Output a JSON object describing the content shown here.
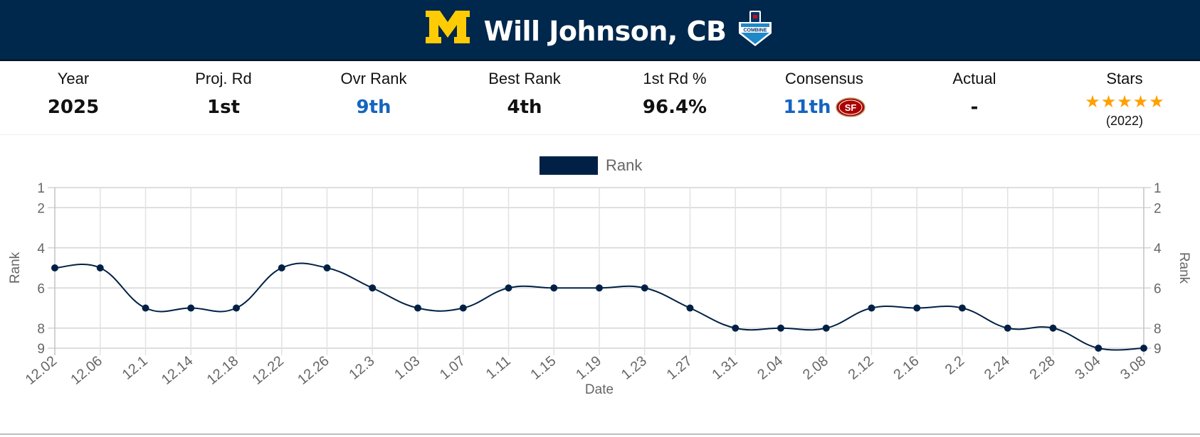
{
  "header": {
    "school_logo": "michigan-block-m-logo",
    "player_name": "Will Johnson, CB",
    "badge": "nfl-scouting-combine-badge",
    "badge_text": "COMBINE",
    "colors": {
      "header_bg": "#00274c",
      "maize": "#ffcb05"
    }
  },
  "stats": [
    {
      "label": "Year",
      "value": "2025"
    },
    {
      "label": "Proj. Rd",
      "value": "1st"
    },
    {
      "label": "Ovr Rank",
      "value": "9th",
      "highlight": true
    },
    {
      "label": "Best Rank",
      "value": "4th"
    },
    {
      "label": "1st Rd %",
      "value": "96.4%"
    },
    {
      "label": "Consensus",
      "value": "11th",
      "highlight": true,
      "team_logo": "san-francisco-49ers-logo"
    },
    {
      "label": "Actual",
      "value": "-"
    },
    {
      "label": "Stars",
      "stars": 5,
      "stars_year": "(2022)"
    }
  ],
  "colors": {
    "highlight": "#1565c0",
    "star": "#ffa000",
    "series": "#002145"
  },
  "chart_data": {
    "type": "line",
    "title": "",
    "legend": {
      "entries": [
        "Rank"
      ],
      "position": "top-center"
    },
    "xlabel": "Date",
    "ylabel": "Rank",
    "y2label": "Rank",
    "ylim": [
      1,
      9
    ],
    "y_reversed": true,
    "yticks": [
      1,
      2,
      4,
      6,
      8,
      9
    ],
    "grid": true,
    "categories": [
      "12.02",
      "12.06",
      "12.1",
      "12.14",
      "12.18",
      "12.22",
      "12.26",
      "12.3",
      "1.03",
      "1.07",
      "1.11",
      "1.15",
      "1.19",
      "1.23",
      "1.27",
      "1.31",
      "2.04",
      "2.08",
      "2.12",
      "2.16",
      "2.2",
      "2.24",
      "2.28",
      "3.04",
      "3.08"
    ],
    "series": [
      {
        "name": "Rank",
        "values": [
          5,
          5,
          7,
          7,
          7,
          5,
          5,
          6,
          7,
          7,
          6,
          6,
          6,
          6,
          7,
          8,
          8,
          8,
          7,
          7,
          7,
          8,
          8,
          9,
          9
        ]
      }
    ]
  }
}
